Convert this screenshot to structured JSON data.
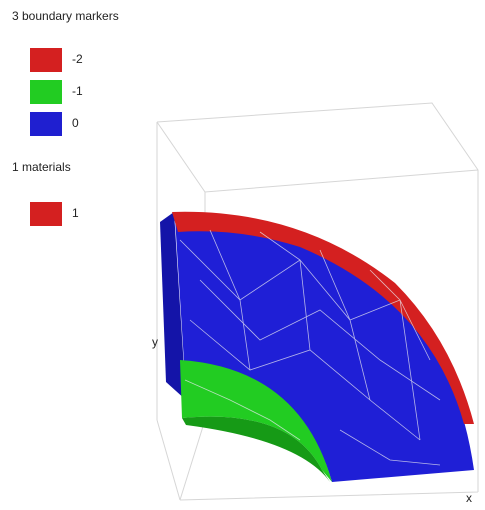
{
  "boundary_legend": {
    "title": "3 boundary markers",
    "items": [
      {
        "label": "-2",
        "color": "#d42020"
      },
      {
        "label": "-1",
        "color": "#22cc22"
      },
      {
        "label": "0",
        "color": "#1f1fd0"
      }
    ]
  },
  "material_legend": {
    "title": "1 materials",
    "items": [
      {
        "label": "1",
        "color": "#d42020"
      }
    ]
  },
  "axes": {
    "y": "y",
    "x": "x"
  }
}
